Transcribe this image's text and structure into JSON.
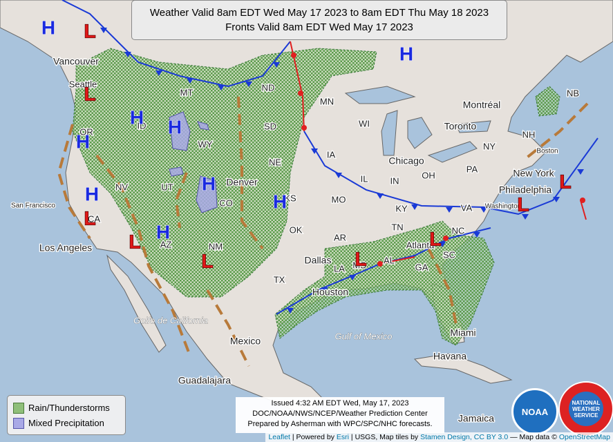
{
  "title": {
    "line1": "Weather Valid 8am EDT Wed May 17 2023 to 8am EDT Thu May 18 2023",
    "line2": "Fronts Valid 8am EDT Wed May 17 2023"
  },
  "legend": [
    "Rain/Thunderstorms",
    "Mixed Precipitation"
  ],
  "issued": [
    "Issued 4:32 AM EDT Wed, May 17, 2023",
    "DOC/NOAA/NWS/NCEP/Weather Prediction Center",
    "Prepared by Asherman with WPC/SPC/NHC forecasts."
  ],
  "attribution": [
    "Leaflet",
    "| Powered by",
    "Esri",
    "| USGS, Map tiles by",
    "Stamen Design",
    ", CC BY 3.0",
    "— Map data ©",
    "OpenStreetMap"
  ],
  "logos": [
    "NOAA",
    "NATIONAL WEATHER SERVICE"
  ],
  "places": [
    "Vancouver",
    "Seattle",
    "OR",
    "NV",
    "San Francisco",
    "CA",
    "Los Angeles",
    "UT",
    "AZ",
    "NM",
    "CO",
    "WY",
    "ID",
    "MT",
    "ND",
    "SD",
    "NE",
    "Denver",
    "KS",
    "OK",
    "TX",
    "Dallas",
    "Houston",
    "MN",
    "IA",
    "MO",
    "AR",
    "LA",
    "WI",
    "IL",
    "Chicago",
    "IN",
    "OH",
    "KY",
    "TN",
    "MS",
    "AL",
    "GA",
    "SC",
    "NC",
    "VA",
    "PA",
    "NY",
    "Toronto",
    "Montréal",
    "Boston",
    "New York",
    "Philadelphia",
    "Washington",
    "NB",
    "NH",
    "Atlanta",
    "Miami",
    "Havana",
    "Jamaica",
    "Mexico",
    "Guadalajara",
    "Golfo de California",
    "Gulf of Mexico"
  ],
  "pressure_centers": [
    "H",
    "H",
    "H",
    "H",
    "H",
    "H",
    "H",
    "H",
    "H",
    "L",
    "L",
    "L",
    "L",
    "L",
    "L",
    "L",
    "L",
    "L"
  ]
}
